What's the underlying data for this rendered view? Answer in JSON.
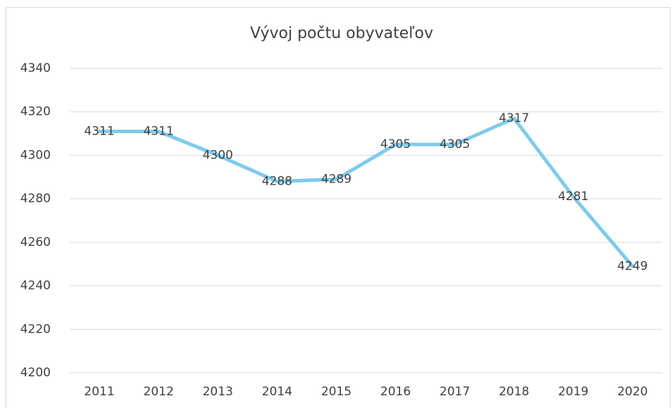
{
  "chart_data": {
    "type": "line",
    "title": "Vývoj počtu obyvateľov",
    "categories": [
      "2011",
      "2012",
      "2013",
      "2014",
      "2015",
      "2016",
      "2017",
      "2018",
      "2019",
      "2020"
    ],
    "values": [
      4311,
      4311,
      4300,
      4288,
      4289,
      4305,
      4305,
      4317,
      4281,
      4249
    ],
    "color": "#7ecbec",
    "ylim": [
      4200,
      4340
    ],
    "yticks": [
      4200,
      4220,
      4240,
      4260,
      4280,
      4300,
      4320,
      4340
    ],
    "grid": true,
    "data_labels": true
  }
}
